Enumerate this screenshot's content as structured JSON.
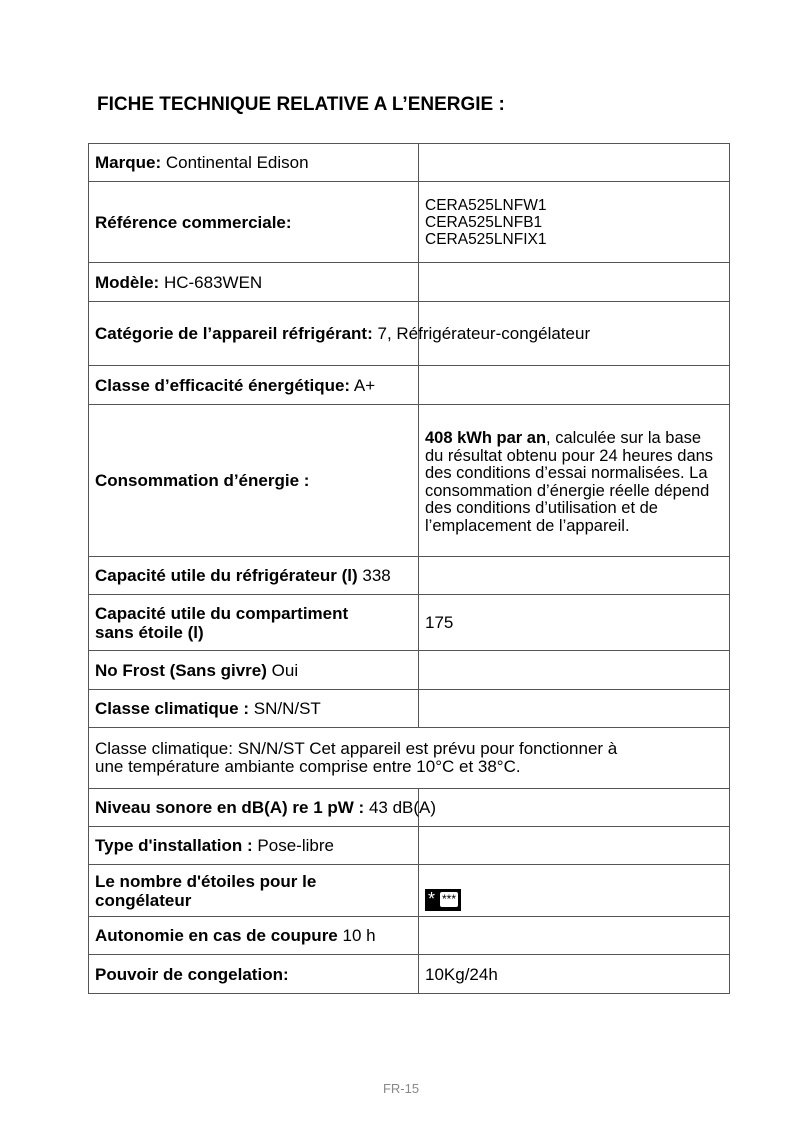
{
  "title": "FICHE TECHNIQUE RELATIVE A L’ENERGIE :",
  "rows": {
    "marque": {
      "label": "Marque:",
      "value": "Continental Edison"
    },
    "reference": {
      "label": "Référence commerciale:",
      "values": [
        "CERA525LNFW1",
        "CERA525LNFB1",
        "CERA525LNFIX1"
      ]
    },
    "modele": {
      "label": "Modèle:",
      "value": "HC-683WEN"
    },
    "categorie": {
      "label": "Catégorie de l’appareil réfrigérant:",
      "value": "7, Réfrigérateur-congélateur"
    },
    "classe": {
      "label": "Classe d’efficacité énergétique:",
      "value": "A+"
    },
    "consommation": {
      "label": "Consommation d’énergie :",
      "value_bold": "408 kWh par an",
      "value": ", calculée sur la base du résultat obtenu pour 24 heures dans des conditions d’essai normalisées. La consommation d’énergie réelle dépend des conditions d’utilisation et de l’emplacement de l’appareil."
    },
    "capacite_refrig": {
      "label": "Capacité utile du réfrigérateur (l)",
      "value": "338"
    },
    "capacite_sans_etoile": {
      "label_1": "Capacité utile du compartiment",
      "label_2": "sans étoile (l)",
      "value": "175"
    },
    "nofrost": {
      "label": "No Frost (Sans givre)",
      "value": "Oui"
    },
    "classe_clim": {
      "label": "Classe climatique :",
      "value": "SN/N/ST"
    },
    "classe_clim_note": {
      "label": "Classe climatique:",
      "value": "SN/N/ST",
      "line1": "Cet appareil est prévu pour fonctionner à",
      "line2": "une température ambiante comprise entre 10°C et 38°C."
    },
    "niveau": {
      "label": "Niveau sonore en dB(A) re 1 pW :",
      "value": "43 dB(A)"
    },
    "installation": {
      "label": "Type d'installation :",
      "value": "Pose-libre"
    },
    "etoiles": {
      "label_1": "Le nombre d'étoiles pour le",
      "label_2": "congélateur",
      "icon": "four-star-freezer-icon",
      "star": "*",
      "stars_box": "***"
    },
    "autonomie": {
      "label": "Autonomie en cas de coupure",
      "value": "10 h"
    },
    "pouvoir": {
      "label": "Pouvoir de congelation:",
      "value": "10Kg/24h"
    }
  },
  "footer": "FR-15"
}
